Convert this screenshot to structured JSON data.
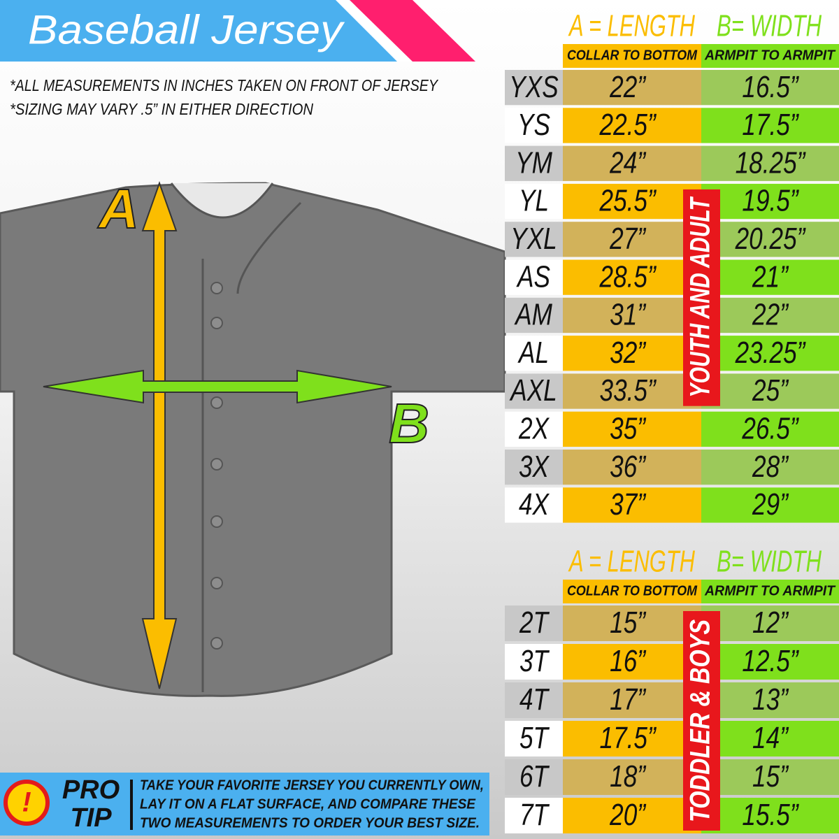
{
  "title": "Baseball Jersey",
  "notes": [
    "*ALL MEASUREMENTS IN INCHES TAKEN ON FRONT OF JERSEY",
    "*SIZING MAY VARY .5” IN EITHER DIRECTION"
  ],
  "diagram": {
    "length_label": "A",
    "width_label": "B"
  },
  "tables": [
    {
      "length_header": "A = LENGTH",
      "width_header": "B= WIDTH",
      "length_sub": "COLLAR TO BOTTOM",
      "width_sub": "ARMPIT TO ARMPIT",
      "group_label": "YOUTH AND ADULT",
      "rows": [
        [
          "YXS",
          "22”",
          "16.5”"
        ],
        [
          "YS",
          "22.5”",
          "17.5”"
        ],
        [
          "YM",
          "24”",
          "18.25”"
        ],
        [
          "YL",
          "25.5”",
          "19.5”"
        ],
        [
          "YXL",
          "27”",
          "20.25”"
        ],
        [
          "AS",
          "28.5”",
          "21”"
        ],
        [
          "AM",
          "31”",
          "22”"
        ],
        [
          "AL",
          "32”",
          "23.25”"
        ],
        [
          "AXL",
          "33.5”",
          "25”"
        ],
        [
          "2X",
          "35”",
          "26.5”"
        ],
        [
          "3X",
          "36”",
          "28”"
        ],
        [
          "4X",
          "37”",
          "29”"
        ]
      ]
    },
    {
      "length_header": "A = LENGTH",
      "width_header": "B= WIDTH",
      "length_sub": "COLLAR TO BOTTOM",
      "width_sub": "ARMPIT TO ARMPIT",
      "group_label": "TODDLER & BOYS",
      "rows": [
        [
          "2T",
          "15”",
          "12”"
        ],
        [
          "3T",
          "16”",
          "12.5”"
        ],
        [
          "4T",
          "17”",
          "13”"
        ],
        [
          "5T",
          "17.5”",
          "14”"
        ],
        [
          "6T",
          "18”",
          "15”"
        ],
        [
          "7T",
          "20”",
          "15.5”"
        ]
      ]
    }
  ],
  "pro_tip": {
    "badge": "!",
    "line1": "PRO",
    "line2": "TIP",
    "text": [
      "TAKE YOUR FAVORITE JERSEY YOU CURRENTLY OWN,",
      "LAY IT ON A FLAT SURFACE, AND COMPARE THESE",
      "TWO MEASUREMENTS TO ORDER YOUR BEST SIZE."
    ]
  }
}
